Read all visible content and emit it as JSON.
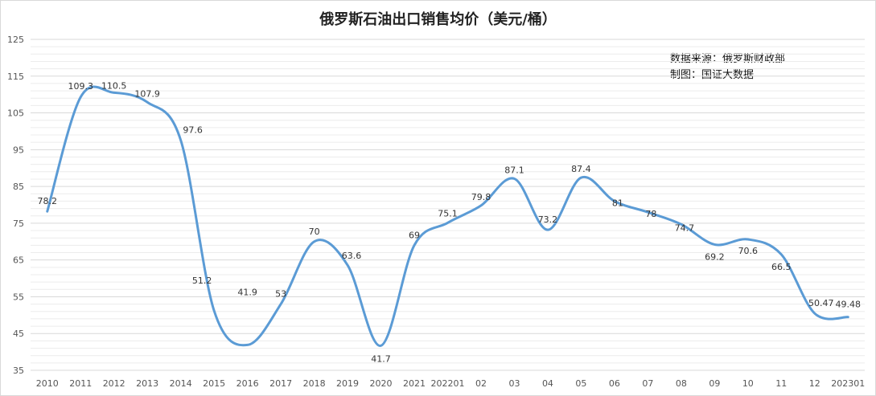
{
  "chart_data": {
    "type": "line",
    "title": "俄罗斯石油出口销售均价（美元/桶）",
    "annotations": [
      "数据来源：俄罗斯财政部",
      "制图：国证大数据"
    ],
    "categories": [
      "2010",
      "2011",
      "2012",
      "2013",
      "2014",
      "2015",
      "2016",
      "2017",
      "2018",
      "2019",
      "2020",
      "2021",
      "202201",
      "02",
      "03",
      "04",
      "05",
      "06",
      "07",
      "08",
      "09",
      "10",
      "11",
      "12",
      "202301"
    ],
    "series": [
      {
        "values": [
          78.2,
          109.3,
          110.5,
          107.9,
          97.6,
          51.2,
          41.9,
          53,
          70,
          63.6,
          41.7,
          69,
          75.1,
          79.8,
          87.1,
          73.2,
          87.4,
          81,
          78,
          74.7,
          69.2,
          70.6,
          66.5,
          50.47,
          49.48
        ],
        "labels": [
          "78.2",
          "109.3",
          "110.5",
          "107.9",
          "97.6",
          "51.2",
          "41.9",
          "53",
          "70",
          "63.6",
          "41.7",
          "69",
          "75.1",
          "79.8",
          "87.1",
          "73.2",
          "87.4",
          "81",
          "78",
          "74.7",
          "69.2",
          "70.6",
          "66.5",
          "50.47",
          "49.48"
        ],
        "color": "#5b9bd5",
        "smooth": true
      }
    ],
    "ylim": [
      35,
      125
    ],
    "yticks": [
      35,
      45,
      55,
      65,
      75,
      85,
      95,
      105,
      115,
      125
    ],
    "grid": true,
    "legend": "none"
  }
}
